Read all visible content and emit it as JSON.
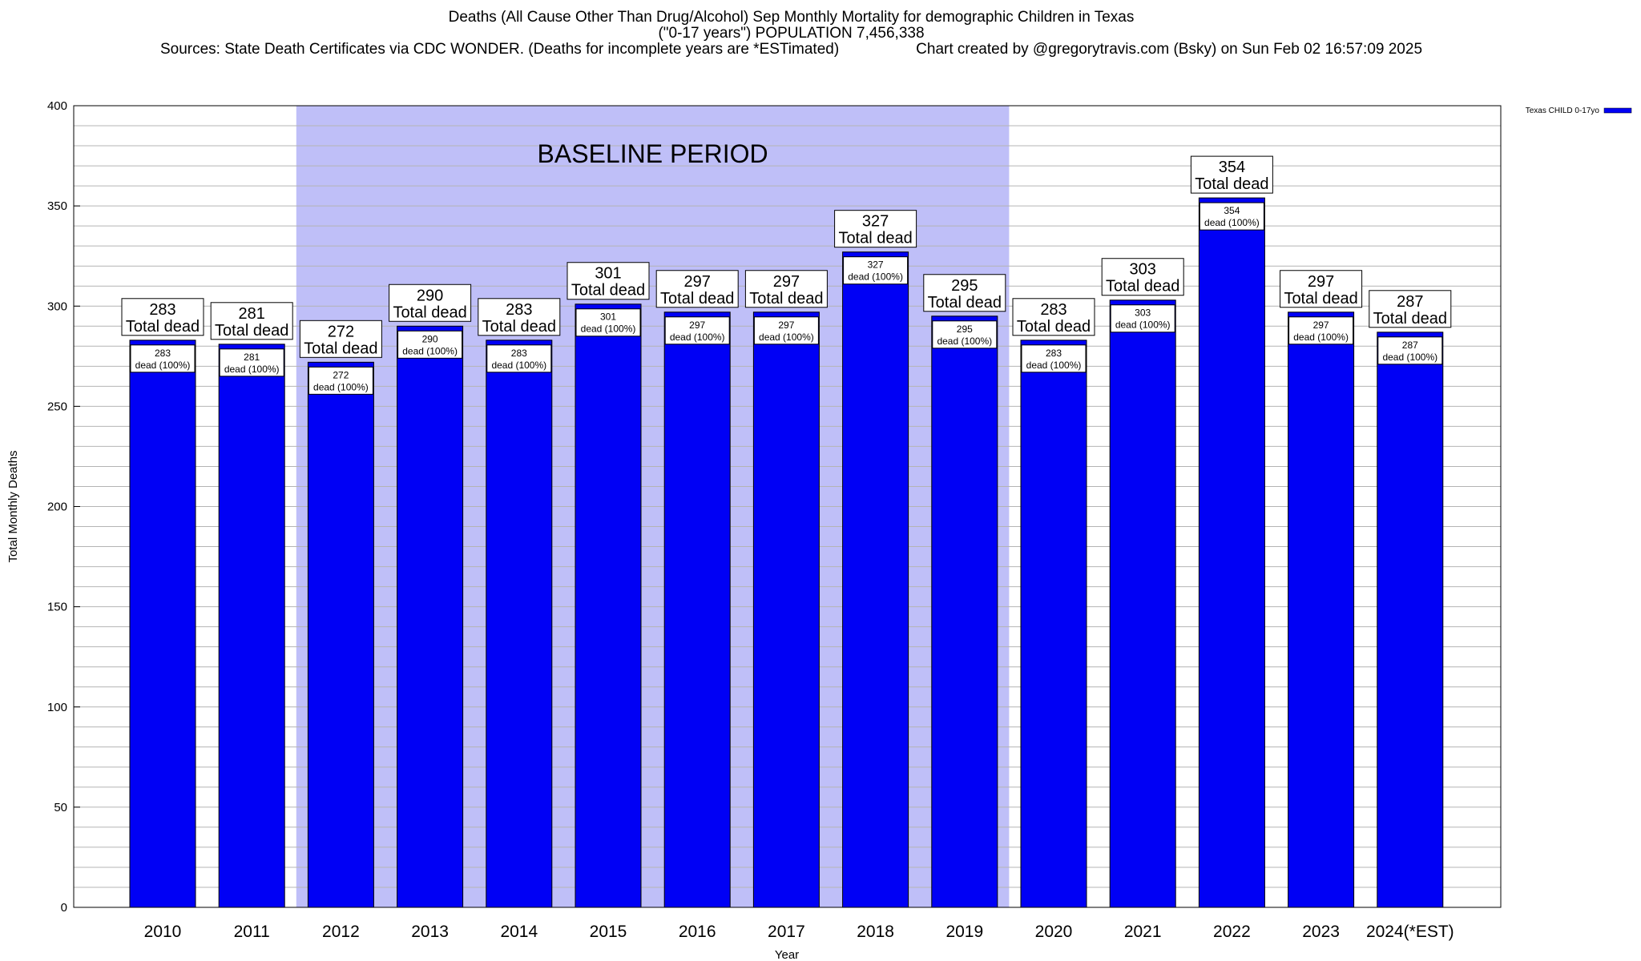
{
  "title": {
    "line1": "Deaths (All Cause Other Than Drug/Alcohol) Sep Monthly Mortality for demographic Children in Texas",
    "line2": "(\"0-17 years\") POPULATION 7,456,338",
    "sources": "Sources: State Death Certificates via CDC WONDER. (Deaths for incomplete years are *ESTimated)",
    "credit": "Chart created by @gregorytravis.com (Bsky) on Sun Feb 02 16:57:09 2025"
  },
  "chart_data": {
    "type": "bar",
    "xlabel": "Year",
    "ylabel": "Total Monthly Deaths",
    "ylim": [
      0,
      400
    ],
    "yticks": [
      0,
      50,
      100,
      150,
      200,
      250,
      300,
      350,
      400
    ],
    "grid": true,
    "legend": {
      "position": "top-right",
      "label": "Texas CHILD 0-17yo"
    },
    "categories": [
      "2010",
      "2011",
      "2012",
      "2013",
      "2014",
      "2015",
      "2016",
      "2017",
      "2018",
      "2019",
      "2020",
      "2021",
      "2022",
      "2023",
      "2024(*EST)"
    ],
    "series": [
      {
        "name": "Texas CHILD 0-17yo",
        "values": [
          283,
          281,
          272,
          290,
          283,
          301,
          297,
          297,
          327,
          295,
          283,
          303,
          354,
          297,
          287
        ]
      }
    ],
    "top_label_suffix": "Total dead",
    "inner_label_suffix": "dead (100%)",
    "baseline": {
      "label": "BASELINE PERIOD",
      "from": "2012",
      "to": "2019"
    },
    "colors": {
      "bar": "#0000f5",
      "baseline_fill": "#bfbff8",
      "grid": "#b4b4b4"
    }
  }
}
